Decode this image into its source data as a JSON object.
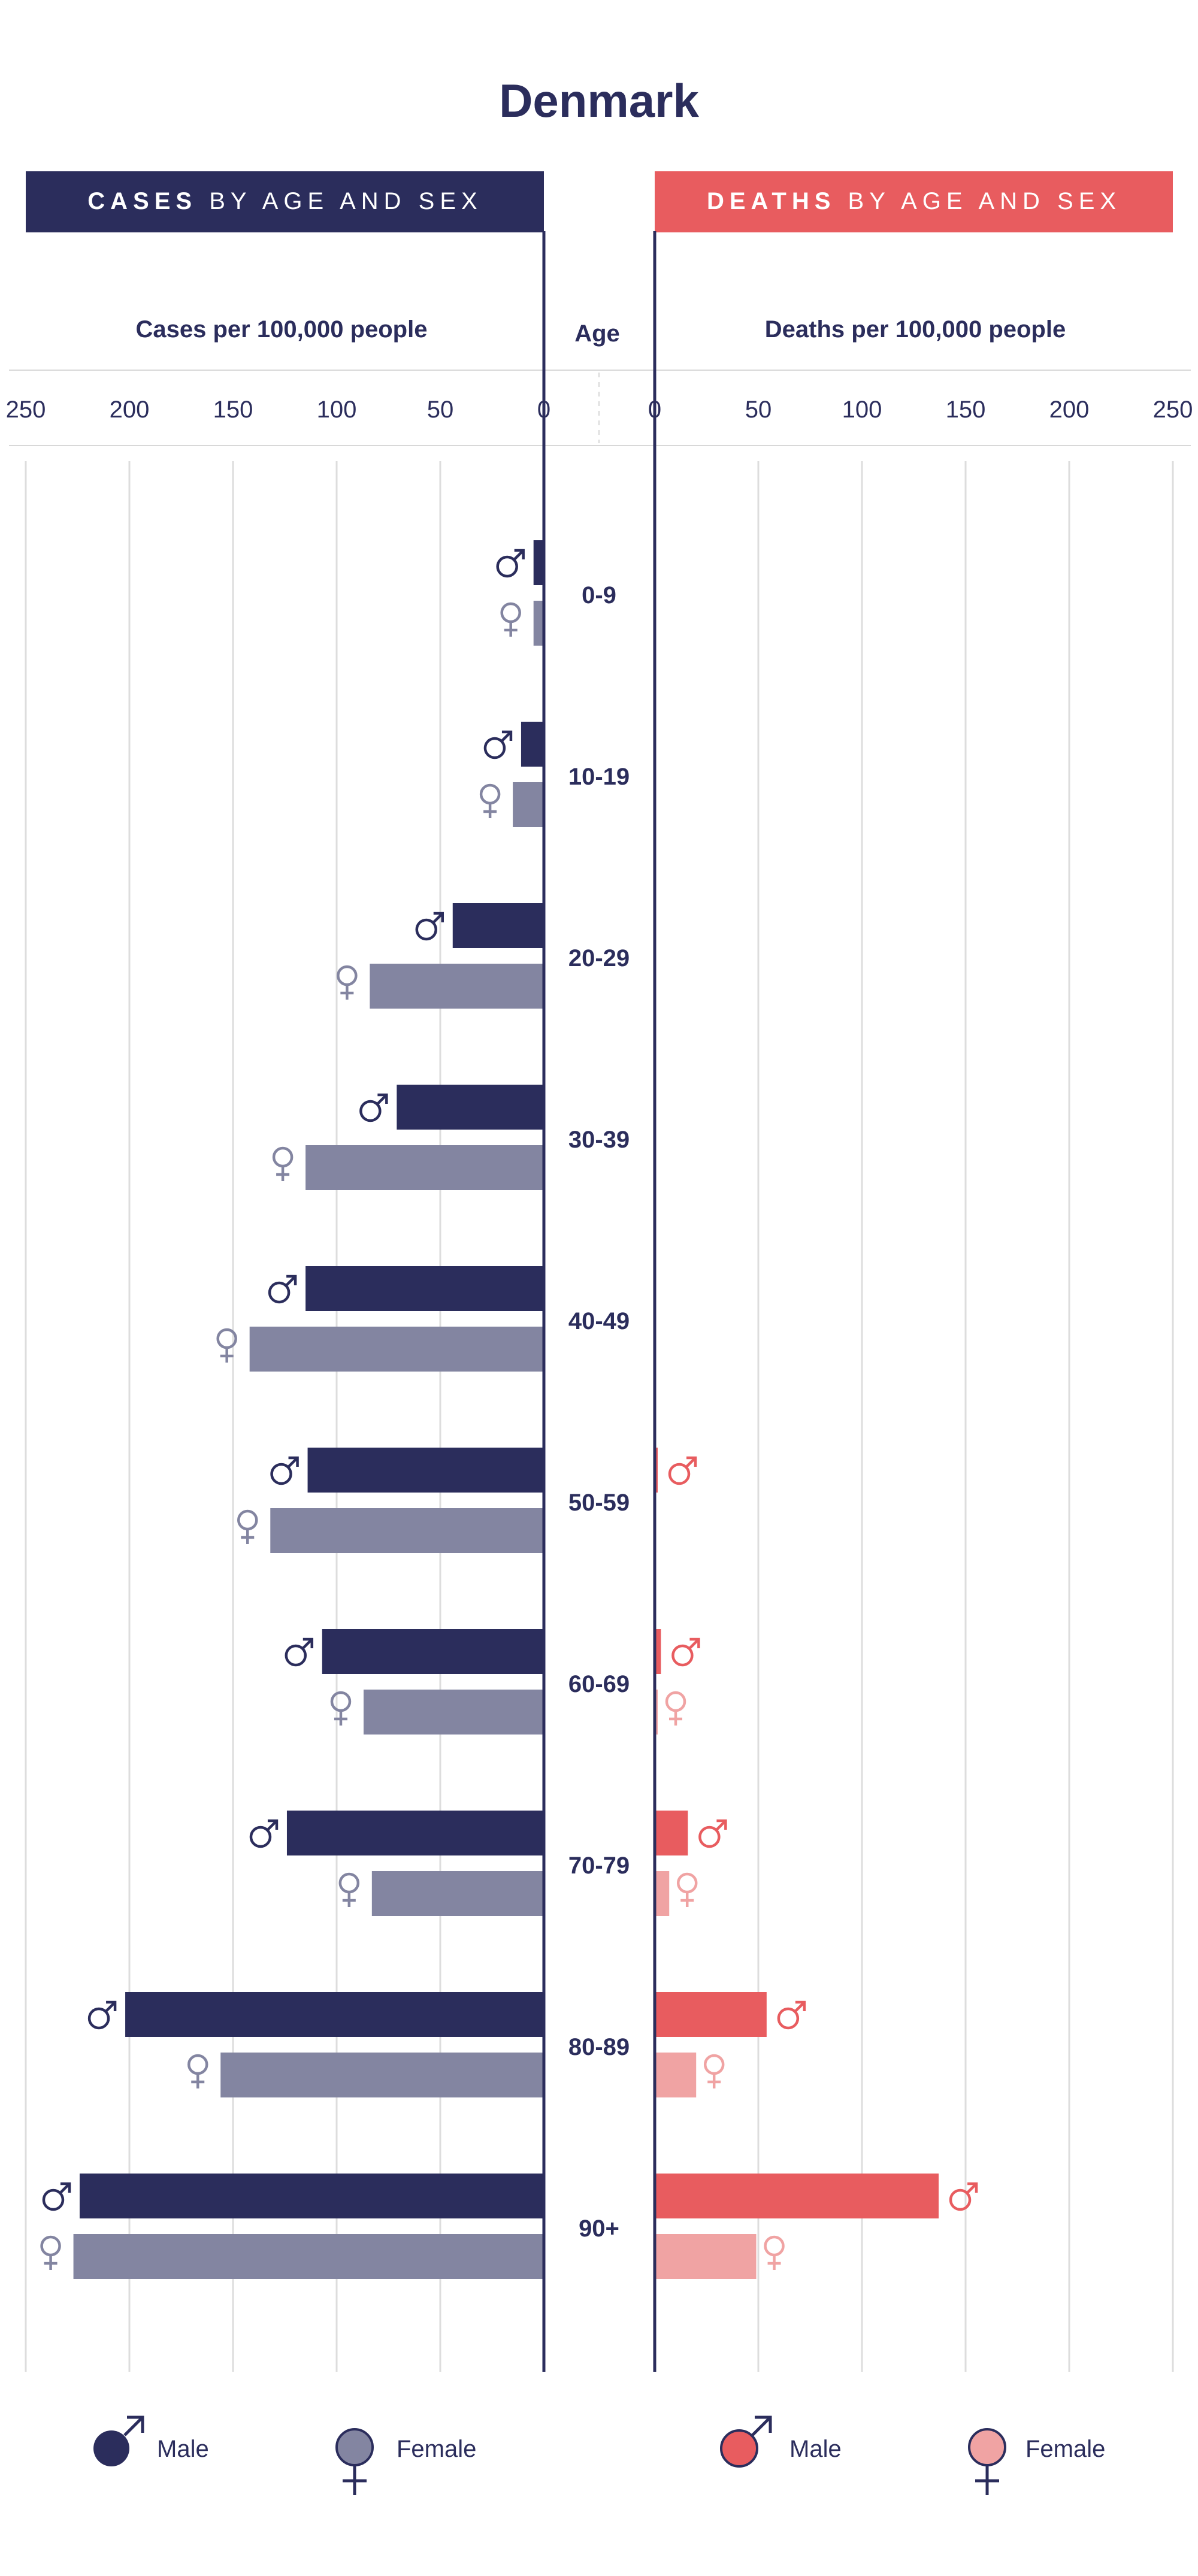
{
  "chart_data": {
    "type": "bar",
    "title": "Denmark",
    "left_panel": {
      "header_bold": "CASES",
      "header_rest": " BY AGE AND SEX",
      "axis_label": "Cases per 100,000 people",
      "ticks": [
        "250",
        "200",
        "150",
        "100",
        "50",
        "0"
      ],
      "xlim": [
        0,
        250
      ]
    },
    "right_panel": {
      "header_bold": "DEATHS",
      "header_rest": " BY AGE AND SEX",
      "axis_label": "Deaths per 100,000 people",
      "ticks": [
        "0",
        "50",
        "100",
        "150",
        "200",
        "250"
      ],
      "xlim": [
        0,
        250
      ]
    },
    "age_label": "Age",
    "categories": [
      "0-9",
      "10-19",
      "20-29",
      "30-39",
      "40-49",
      "50-59",
      "60-69",
      "70-79",
      "80-89",
      "90+"
    ],
    "cases": {
      "male": [
        5,
        11,
        44,
        71,
        115,
        114,
        107,
        124,
        202,
        224
      ],
      "female": [
        5,
        15,
        84,
        115,
        142,
        132,
        87,
        83,
        156,
        227
      ]
    },
    "deaths": {
      "male": [
        0,
        0,
        0,
        0,
        0,
        1,
        3,
        16,
        54,
        137
      ],
      "female": [
        0,
        0,
        0,
        0,
        0,
        0,
        1,
        7,
        20,
        49
      ]
    },
    "legend": {
      "cases_male": "Male",
      "cases_female": "Female",
      "deaths_male": "Male",
      "deaths_female": "Female"
    },
    "colors": {
      "cases_male": "#2b2d5c",
      "cases_female": "#8385a1",
      "deaths_male": "#e85c5f",
      "deaths_female": "#f0a3a3",
      "grid": "#dddddd",
      "text": "#2b2d5c"
    }
  }
}
